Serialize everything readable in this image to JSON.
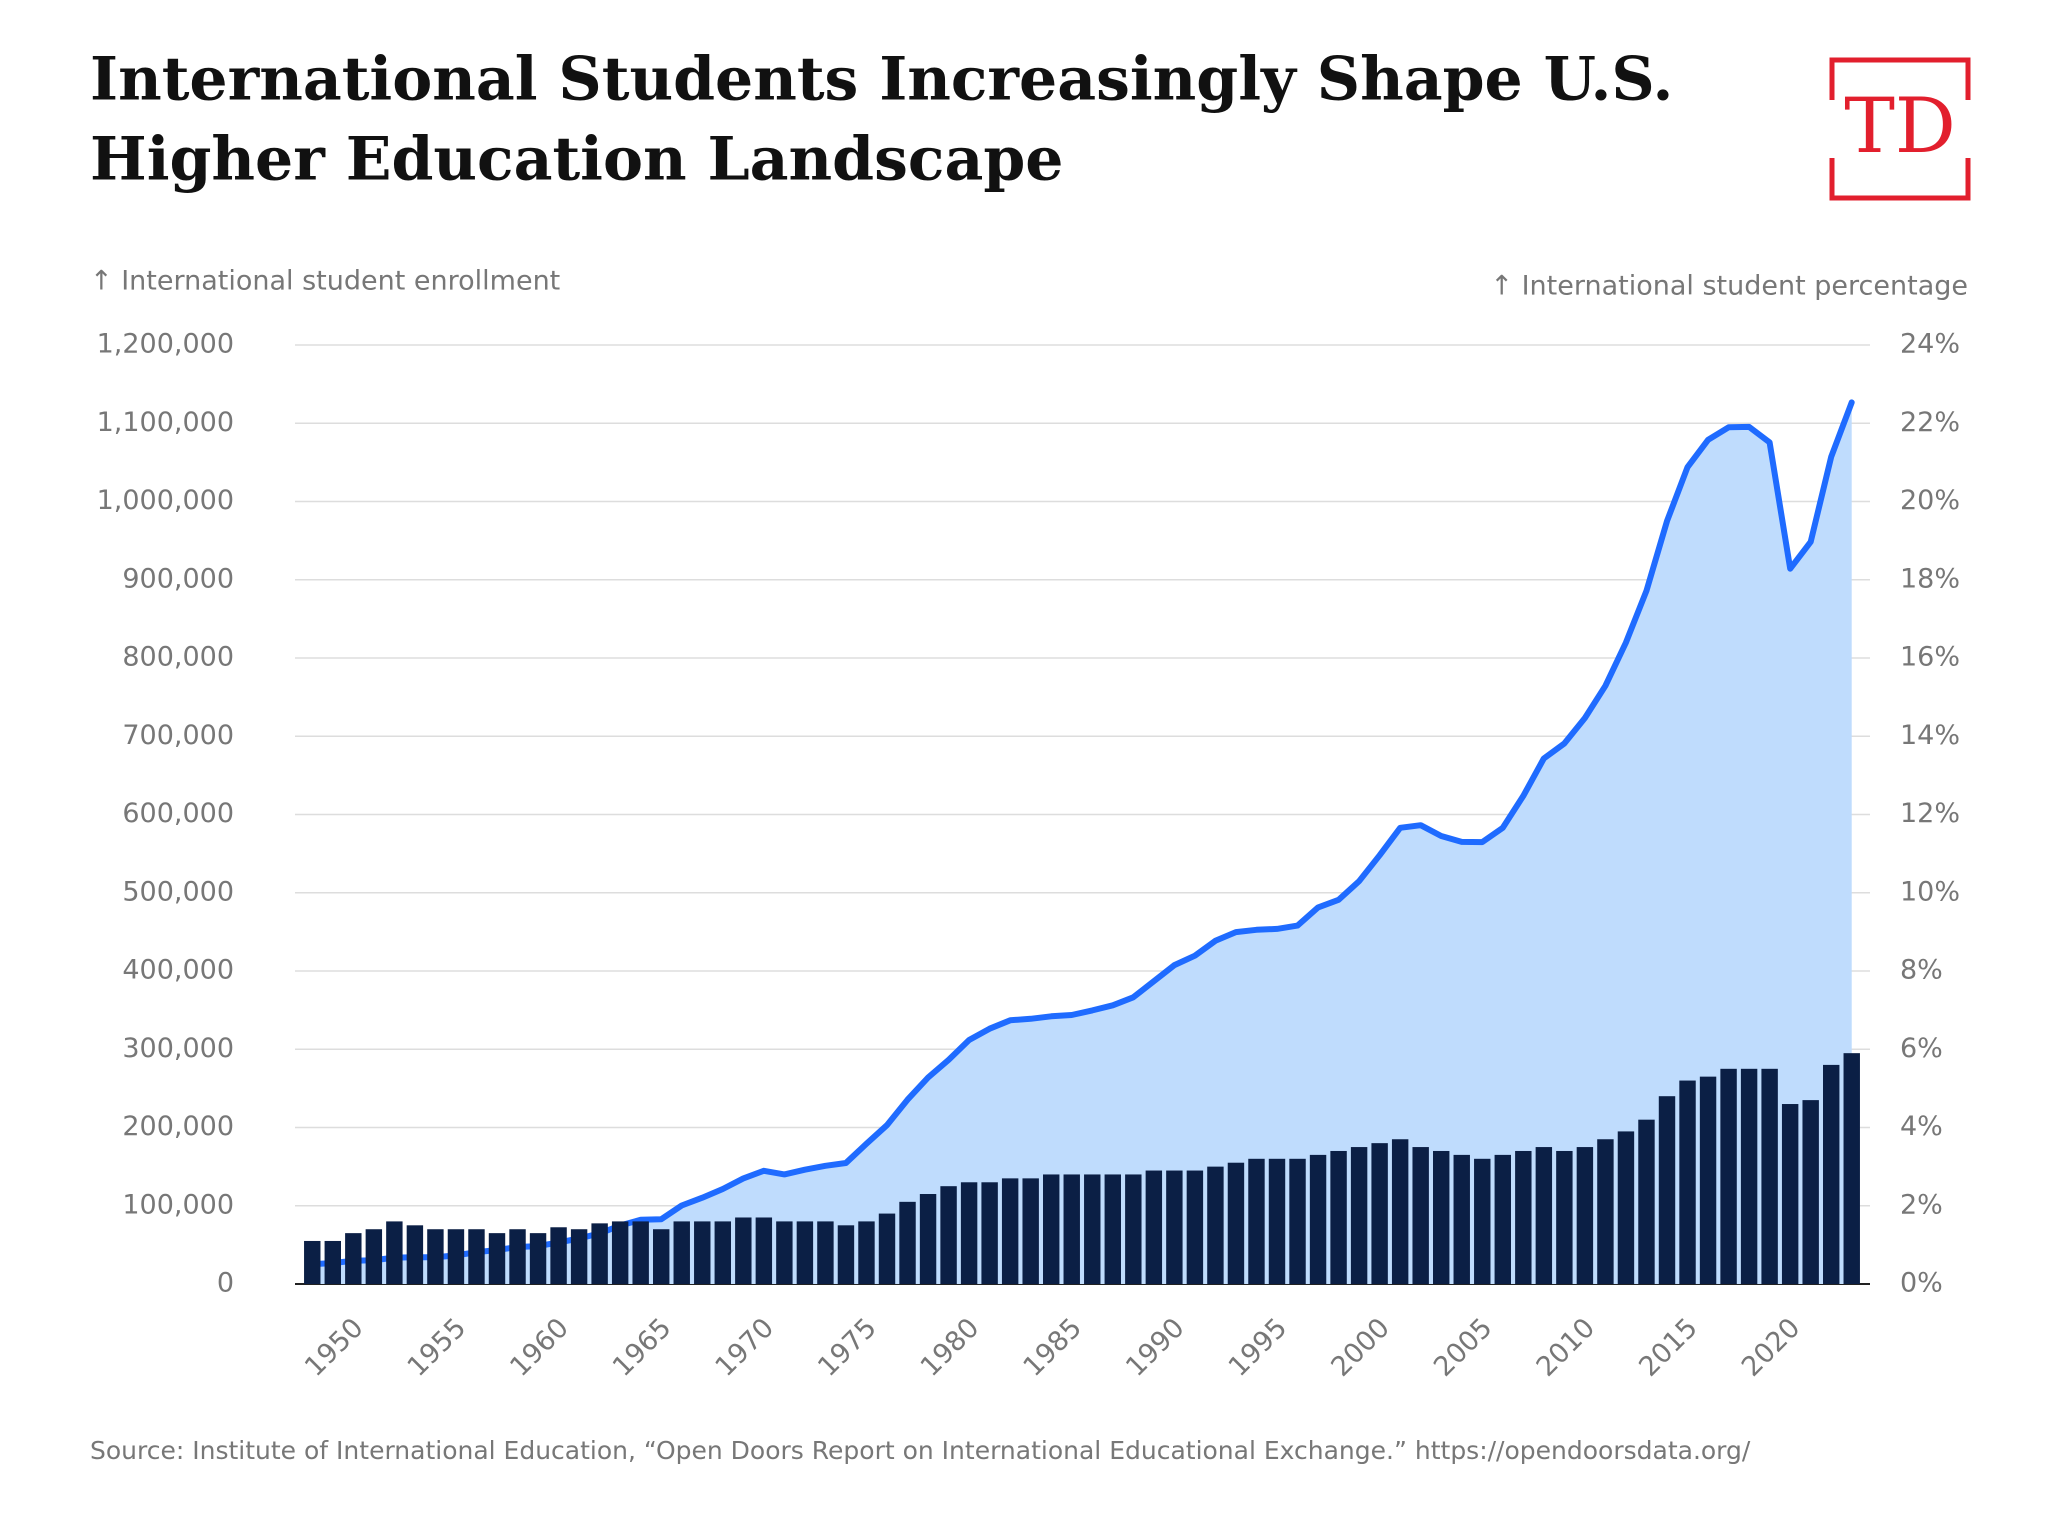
{
  "logo": "TD",
  "chart_data": {
    "type": "bar",
    "title": [
      "International Students Increasingly Shape U.S.",
      "Higher Education Landscape"
    ],
    "y_label": "↑ International student enrollment",
    "y2_label": "↑ International student percentage",
    "source": "Source: Institute of International Education, “Open Doors Report on International Educational Exchange.” https://opendoorsdata.org/",
    "categories": [
      null,
      null,
      "1950",
      null,
      null,
      null,
      null,
      "1955",
      null,
      null,
      null,
      null,
      "1960",
      null,
      null,
      null,
      null,
      "1965",
      null,
      null,
      null,
      null,
      "1970",
      null,
      null,
      null,
      null,
      "1975",
      null,
      null,
      null,
      null,
      "1980",
      null,
      null,
      null,
      null,
      "1985",
      null,
      null,
      null,
      null,
      "1990",
      null,
      null,
      null,
      null,
      "1995",
      null,
      null,
      null,
      null,
      "2000",
      null,
      null,
      null,
      null,
      "2005",
      null,
      null,
      null,
      null,
      "2010",
      null,
      null,
      null,
      null,
      "2015",
      null,
      null,
      null,
      null,
      "2020",
      null,
      null,
      null
    ],
    "series": [
      {
        "type": "area",
        "color": "#1f6bff",
        "fill": "#bfdcfd",
        "values": [
          25464,
          26759,
          29813,
          30462,
          33675,
          34232,
          34232,
          36494,
          40666,
          43391,
          47245,
          48486,
          53107,
          58086,
          64705,
          74814,
          82045,
          82709,
          100262,
          110315,
          121362,
          134959,
          144708,
          140126,
          146097,
          151066,
          154580,
          179344,
          203068,
          235509,
          263938,
          286343,
          311882,
          326299,
          336985,
          338894,
          342113,
          343777,
          349609,
          356187,
          366354,
          386851,
          407529,
          419585,
          438618,
          449749,
          452635,
          453787,
          457984,
          481280,
          490933,
          514723,
          547867,
          582996,
          586323,
          572509,
          565039,
          564766,
          582984,
          623805,
          671616,
          690923,
          723277,
          764495,
          819644,
          886052,
          974926,
          1043839,
          1078822,
          1094792,
          1095299,
          1075496,
          914095,
          948519,
          1057188,
          1126690
        ]
      },
      {
        "type": "bar",
        "axis": "y2",
        "color": "#0b1f45",
        "values": [
          1.1,
          1.1,
          1.3,
          1.4,
          1.6,
          1.5,
          1.4,
          1.4,
          1.4,
          1.3,
          1.4,
          1.3,
          1.45,
          1.4,
          1.55,
          1.6,
          1.6,
          1.4,
          1.6,
          1.6,
          1.6,
          1.7,
          1.7,
          1.6,
          1.6,
          1.6,
          1.5,
          1.6,
          1.8,
          2.1,
          2.3,
          2.5,
          2.6,
          2.6,
          2.7,
          2.7,
          2.8,
          2.8,
          2.8,
          2.8,
          2.8,
          2.9,
          2.9,
          2.9,
          3.0,
          3.1,
          3.2,
          3.2,
          3.2,
          3.3,
          3.4,
          3.5,
          3.6,
          3.7,
          3.5,
          3.4,
          3.3,
          3.2,
          3.3,
          3.4,
          3.5,
          3.4,
          3.5,
          3.7,
          3.9,
          4.2,
          4.8,
          5.2,
          5.3,
          5.5,
          5.5,
          5.5,
          4.6,
          4.7,
          5.6,
          5.9
        ]
      }
    ],
    "ylim": [
      0,
      1200000
    ],
    "yticks": [
      0,
      {
        "value": 100000,
        "label": "100,000"
      },
      {
        "value": 200000,
        "label": "200,000"
      },
      {
        "value": 300000,
        "label": "300,000"
      },
      {
        "value": 400000,
        "label": "400,000"
      },
      {
        "value": 500000,
        "label": "500,000"
      },
      {
        "value": 600000,
        "label": "600,000"
      },
      {
        "value": 700000,
        "label": "700,000"
      },
      {
        "value": 800000,
        "label": "800,000"
      },
      {
        "value": 900000,
        "label": "900,000"
      },
      {
        "value": 1000000,
        "label": "1,000,000"
      },
      {
        "value": 1100000,
        "label": "1,100,000"
      },
      {
        "value": 1200000,
        "label": "1,200,000"
      }
    ],
    "y2lim": [
      0,
      24
    ],
    "y2ticks": [
      {
        "value": 0,
        "label": "0%"
      },
      {
        "value": 2,
        "label": "2%"
      },
      {
        "value": 4,
        "label": "4%"
      },
      {
        "value": 6,
        "label": "6%"
      },
      {
        "value": 8,
        "label": "8%"
      },
      {
        "value": 10,
        "label": "10%"
      },
      {
        "value": 12,
        "label": "12%"
      },
      {
        "value": 14,
        "label": "14%"
      },
      {
        "value": 16,
        "label": "16%"
      },
      {
        "value": 18,
        "label": "18%"
      },
      {
        "value": 20,
        "label": "20%"
      },
      {
        "value": 22,
        "label": "22%"
      },
      {
        "value": 24,
        "label": "24%"
      }
    ],
    "grid": true
  }
}
